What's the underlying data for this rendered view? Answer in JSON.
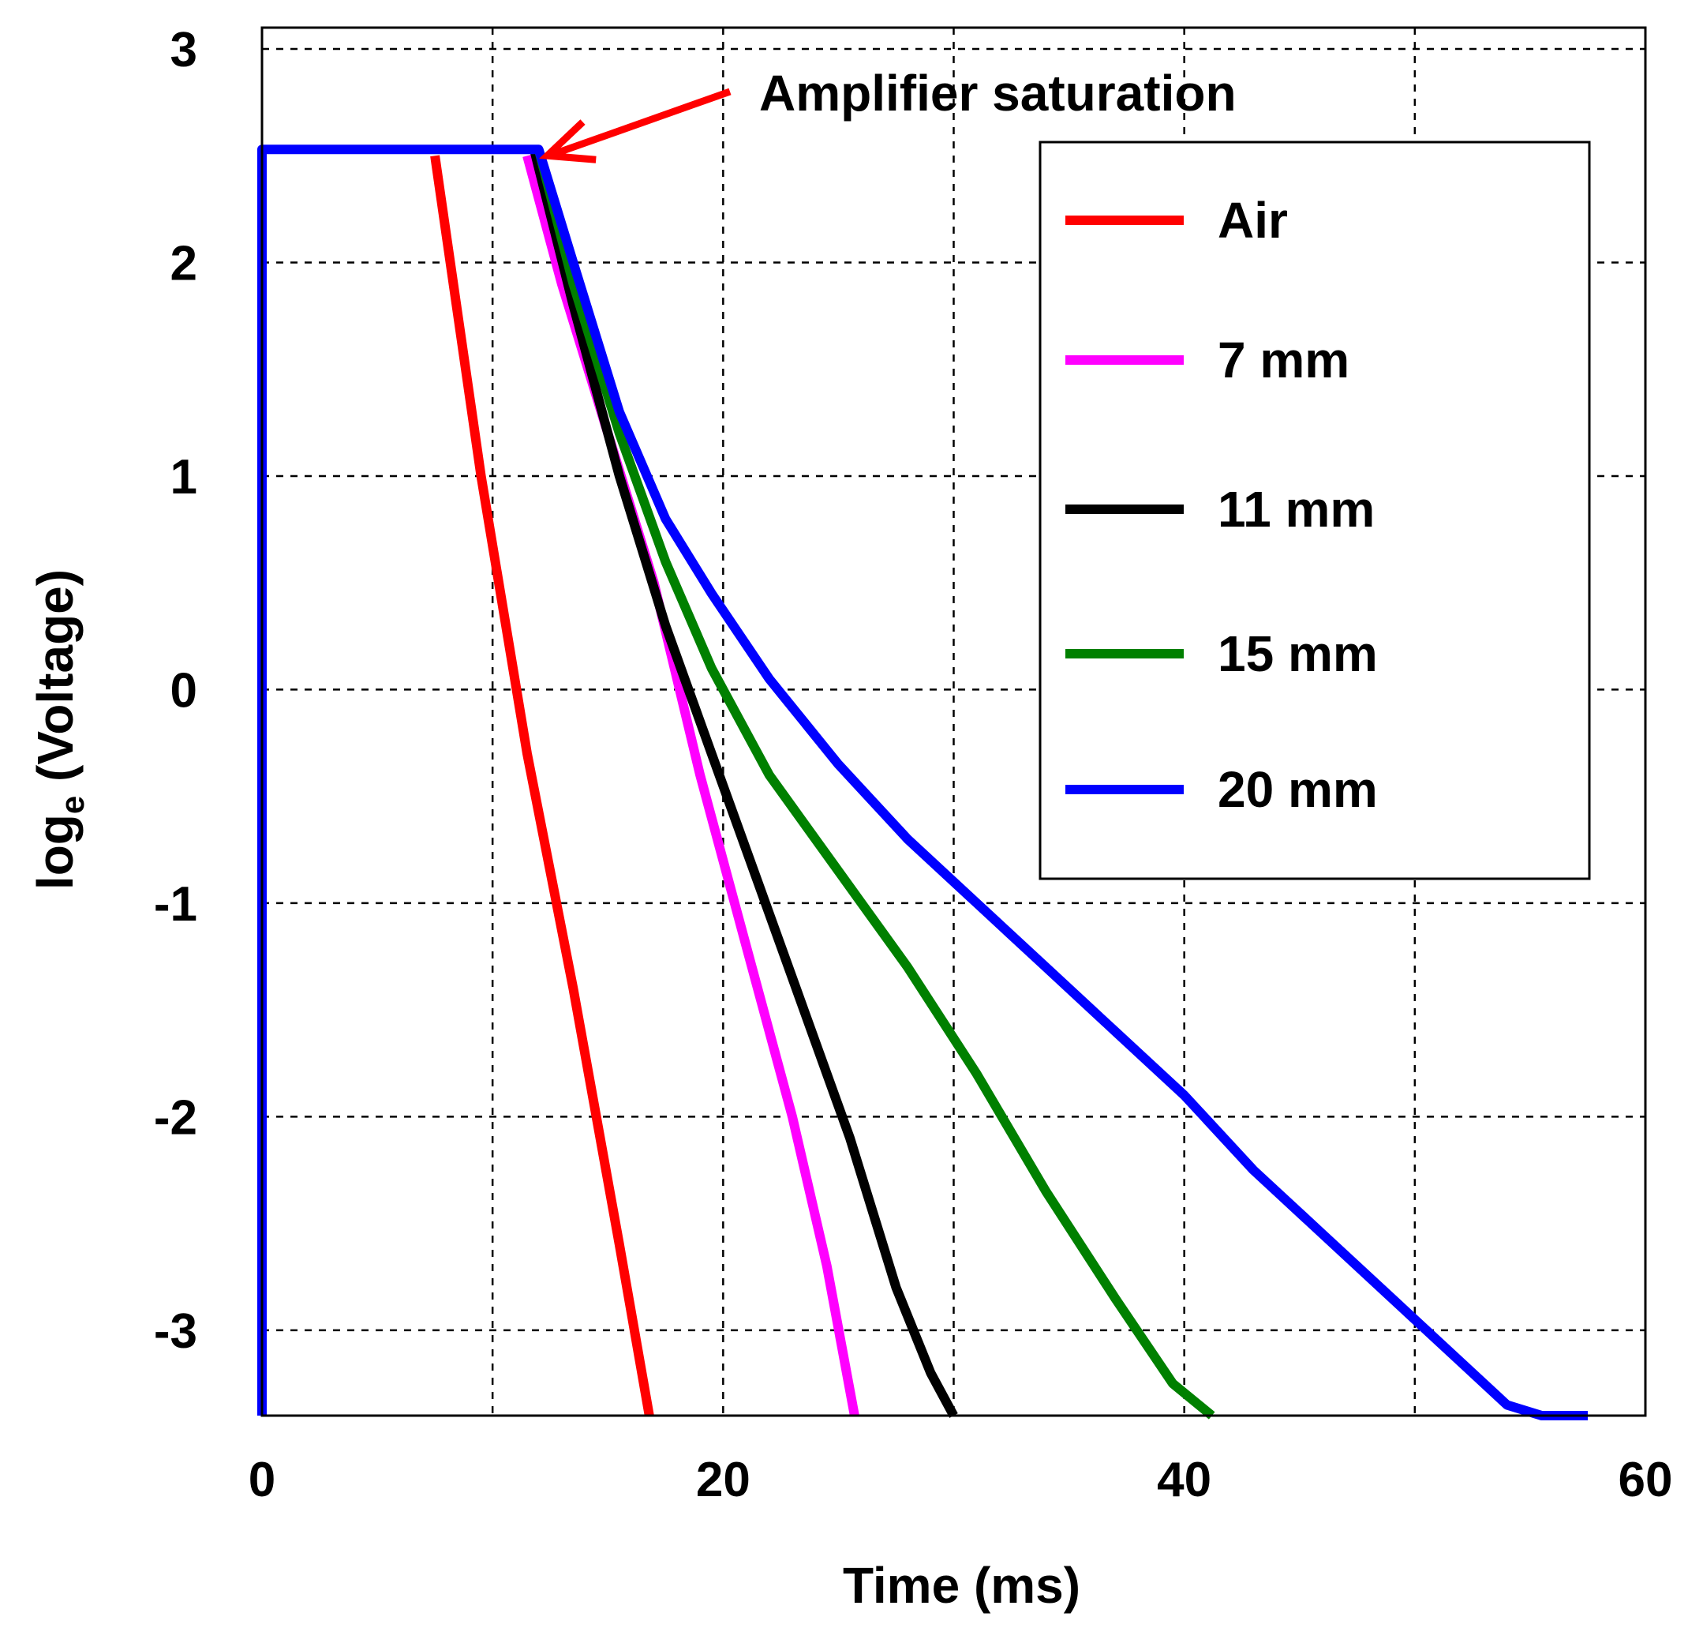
{
  "chart_data": {
    "type": "line",
    "title": "",
    "xlabel": "Time (ms)",
    "ylabel_base": "log",
    "ylabel_sub": "e",
    "ylabel_rest": " (Voltage)",
    "xlim": [
      0,
      60
    ],
    "ylim": [
      -3.4,
      3.1
    ],
    "xticks": [
      0,
      20,
      40,
      60
    ],
    "xtick_labels": [
      "0",
      "20",
      "40",
      "60"
    ],
    "yticks": [
      3,
      2,
      1,
      0,
      -1,
      -2,
      -3
    ],
    "ytick_labels": [
      "3",
      "2",
      "1",
      "0",
      "-1",
      "-2",
      "-3"
    ],
    "grid_x": [
      0,
      10,
      20,
      30,
      40,
      50,
      60
    ],
    "grid_y": [
      3,
      2,
      1,
      0,
      -1,
      -2,
      -3
    ],
    "grid": true,
    "legend_position": "top-right",
    "annotation": {
      "text": "Amplifier saturation",
      "color": "#ff0000",
      "point": [
        12.2,
        2.53
      ]
    },
    "series": [
      {
        "name": "Air",
        "color": "#ff0000",
        "x": [
          7.5,
          9.5,
          11.5,
          13.5,
          15.5,
          16.8
        ],
        "y": [
          2.5,
          1.0,
          -0.3,
          -1.4,
          -2.6,
          -3.4
        ]
      },
      {
        "name": "7 mm",
        "color": "#ff00ff",
        "x": [
          11.5,
          13.0,
          15.0,
          17.0,
          19.0,
          21.0,
          23.0,
          24.5,
          25.7
        ],
        "y": [
          2.5,
          1.9,
          1.2,
          0.5,
          -0.4,
          -1.2,
          -2.0,
          -2.7,
          -3.4
        ]
      },
      {
        "name": "11 mm",
        "color": "#000000",
        "x": [
          11.8,
          13.5,
          15.5,
          17.5,
          19.5,
          21.5,
          23.5,
          25.5,
          27.5,
          29.0,
          30.0
        ],
        "y": [
          2.53,
          1.8,
          1.0,
          0.3,
          -0.3,
          -0.9,
          -1.5,
          -2.1,
          -2.8,
          -3.2,
          -3.4
        ]
      },
      {
        "name": "15 mm",
        "color": "#008000",
        "x": [
          12.0,
          13.5,
          15.5,
          17.5,
          19.5,
          22.0,
          25.0,
          28.0,
          31.0,
          34.0,
          37.0,
          39.5,
          41.2
        ],
        "y": [
          2.53,
          1.9,
          1.2,
          0.6,
          0.1,
          -0.4,
          -0.85,
          -1.3,
          -1.8,
          -2.35,
          -2.85,
          -3.25,
          -3.4
        ]
      },
      {
        "name": "20 mm",
        "color": "#0000ff",
        "x": [
          0.0,
          0.0,
          12.0,
          13.5,
          15.5,
          17.5,
          19.5,
          22.0,
          25.0,
          28.0,
          31.0,
          34.0,
          37.0,
          40.0,
          43.0,
          46.0,
          49.0,
          52.0,
          54.0,
          55.5,
          57.5
        ],
        "y": [
          -3.4,
          2.53,
          2.53,
          2.0,
          1.3,
          0.8,
          0.45,
          0.05,
          -0.35,
          -0.7,
          -1.0,
          -1.3,
          -1.6,
          -1.9,
          -2.25,
          -2.55,
          -2.85,
          -3.15,
          -3.35,
          -3.4,
          -3.4
        ]
      }
    ]
  }
}
